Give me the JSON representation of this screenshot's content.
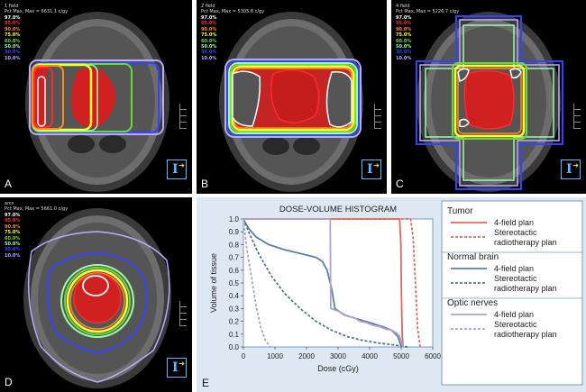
{
  "panels": [
    {
      "id": "A",
      "title_line1": "1 field",
      "title_line2": "Pct Max, Max = 6631.1 c/gy"
    },
    {
      "id": "B",
      "title_line1": "2 field",
      "title_line2": "Pct Max, Max = 5305.8 c/gy"
    },
    {
      "id": "C",
      "title_line1": "4 field",
      "title_line2": "Pct Max, Max = 5226.7 c/gy"
    },
    {
      "id": "D",
      "title_line1": "arcs",
      "title_line2": "Pct Max, Max = 5661.0 c/gy"
    }
  ],
  "isodose_levels": [
    {
      "label": "97.0%",
      "color": "#ffffff"
    },
    {
      "label": "95.0%",
      "color": "#ff2a2a"
    },
    {
      "label": "90.0%",
      "color": "#ff8c1a"
    },
    {
      "label": "75.0%",
      "color": "#ffff33"
    },
    {
      "label": "60.0%",
      "color": "#66dd33"
    },
    {
      "label": "50.0%",
      "color": "#99ffaa"
    },
    {
      "label": "30.0%",
      "color": "#3344ff"
    },
    {
      "label": "10.0%",
      "color": "#bbaaff"
    }
  ],
  "chart_data": {
    "type": "line",
    "title": "DOSE-VOLUME HISTOGRAM",
    "xlabel": "Dose (cGy)",
    "ylabel": "Volume of tissue",
    "xlim": [
      0,
      6000
    ],
    "ylim": [
      0,
      1.0
    ],
    "xticks": [
      "0",
      "1000",
      "2000",
      "3000",
      "4000",
      "5000",
      "6000"
    ],
    "yticks": [
      "0.0",
      "0.1",
      "0.2",
      "0.3",
      "0.4",
      "0.5",
      "0.6",
      "0.7",
      "0.8",
      "0.9",
      "1.0"
    ],
    "legend_placement": "right",
    "groups": [
      {
        "name": "Tumor",
        "series": [
          {
            "name": "4-field plan",
            "color": "#d96b5f",
            "dash": false,
            "points": [
              [
                0,
                1.0
              ],
              [
                4950,
                1.0
              ],
              [
                4990,
                0.8
              ],
              [
                5010,
                0.4
              ],
              [
                5030,
                0.1
              ],
              [
                5060,
                0.0
              ]
            ]
          },
          {
            "name": "Stereotactic radiotherapy plan",
            "color": "#d96b5f",
            "dash": true,
            "points": [
              [
                0,
                1.0
              ],
              [
                5300,
                1.0
              ],
              [
                5380,
                0.85
              ],
              [
                5450,
                0.5
              ],
              [
                5520,
                0.15
              ],
              [
                5600,
                0.0
              ]
            ]
          }
        ]
      },
      {
        "name": "Normal brain",
        "series": [
          {
            "name": "4-field plan",
            "color": "#5b7fa8",
            "dash": false,
            "points": [
              [
                0,
                1.0
              ],
              [
                150,
                0.93
              ],
              [
                400,
                0.86
              ],
              [
                800,
                0.8
              ],
              [
                1300,
                0.76
              ],
              [
                1800,
                0.73
              ],
              [
                2300,
                0.7
              ],
              [
                2500,
                0.67
              ],
              [
                2650,
                0.6
              ],
              [
                2800,
                0.45
              ],
              [
                2900,
                0.3
              ],
              [
                3200,
                0.25
              ],
              [
                3600,
                0.22
              ],
              [
                4000,
                0.19
              ],
              [
                4400,
                0.16
              ],
              [
                4700,
                0.13
              ],
              [
                4900,
                0.08
              ],
              [
                5000,
                0.0
              ]
            ]
          },
          {
            "name": "Stereotactic radiotherapy plan",
            "color": "#4f7a82",
            "dash": true,
            "points": [
              [
                0,
                1.0
              ],
              [
                200,
                0.88
              ],
              [
                500,
                0.72
              ],
              [
                900,
                0.55
              ],
              [
                1300,
                0.42
              ],
              [
                1800,
                0.3
              ],
              [
                2300,
                0.2
              ],
              [
                2800,
                0.13
              ],
              [
                3300,
                0.08
              ],
              [
                3800,
                0.05
              ],
              [
                4300,
                0.03
              ],
              [
                4800,
                0.015
              ],
              [
                5200,
                0.0
              ]
            ]
          }
        ]
      },
      {
        "name": "Optic nerves",
        "series": [
          {
            "name": "4-field plan",
            "color": "#b3a1c9",
            "dash": false,
            "points": [
              [
                0,
                1.0
              ],
              [
                2750,
                1.0
              ],
              [
                2770,
                0.3
              ],
              [
                3000,
                0.28
              ],
              [
                3300,
                0.24
              ],
              [
                3500,
                0.23
              ],
              [
                3700,
                0.2
              ],
              [
                3900,
                0.19
              ],
              [
                4100,
                0.17
              ],
              [
                4300,
                0.16
              ],
              [
                4500,
                0.14
              ],
              [
                4700,
                0.13
              ],
              [
                4850,
                0.11
              ],
              [
                4950,
                0.08
              ],
              [
                5050,
                0.0
              ]
            ]
          },
          {
            "name": "Stereotactic radiotherapy plan",
            "color": "#b3a1c9",
            "dash": true,
            "points": [
              [
                0,
                1.0
              ],
              [
                100,
                0.78
              ],
              [
                250,
                0.55
              ],
              [
                400,
                0.32
              ],
              [
                550,
                0.15
              ],
              [
                700,
                0.05
              ],
              [
                850,
                0.0
              ]
            ]
          }
        ]
      }
    ]
  },
  "panel_E_label": "E"
}
